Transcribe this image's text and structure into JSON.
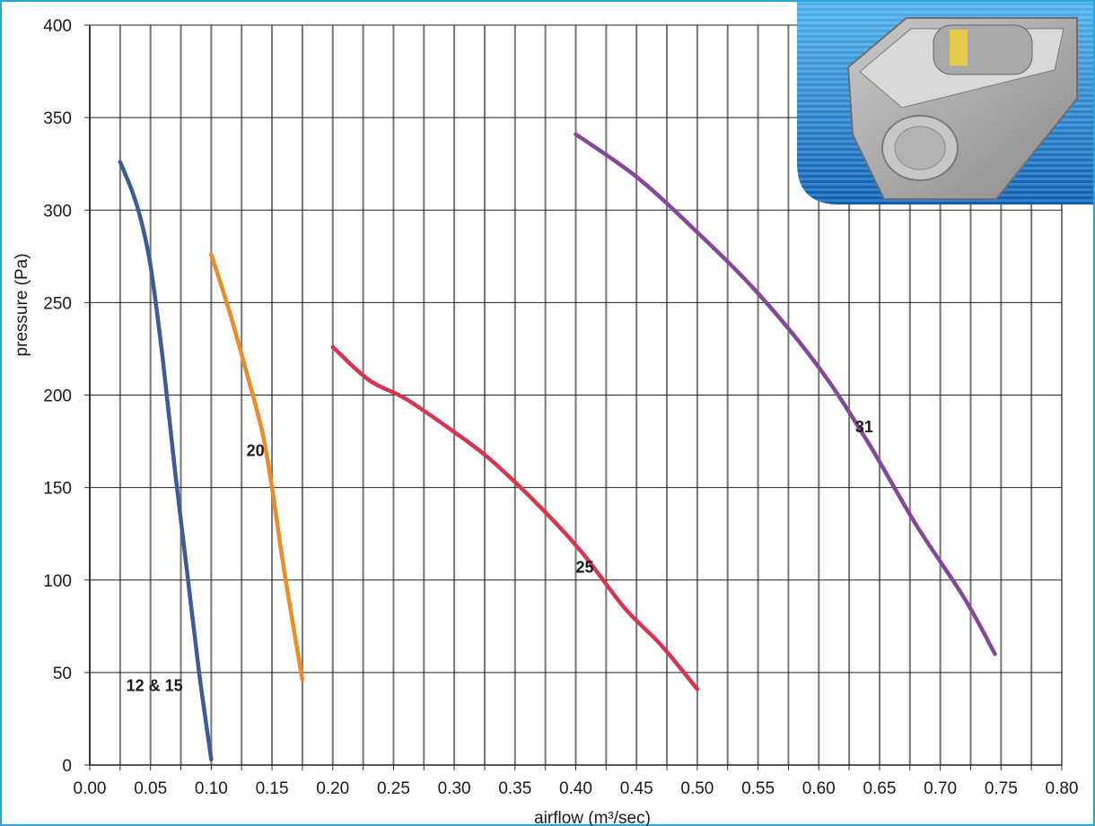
{
  "chart_data": {
    "type": "line",
    "xlabel": "airflow (m³/sec)",
    "ylabel": "pressure (Pa)",
    "xlim": [
      0.0,
      0.8
    ],
    "ylim": [
      0,
      400
    ],
    "x_ticks": [
      "0.00",
      "0.05",
      "0.10",
      "0.15",
      "0.20",
      "0.25",
      "0.30",
      "0.35",
      "0.40",
      "0.45",
      "0.50",
      "0.55",
      "0.60",
      "0.65",
      "0.70",
      "0.75",
      "0.80"
    ],
    "y_ticks": [
      "0",
      "50",
      "100",
      "150",
      "200",
      "250",
      "300",
      "350",
      "400"
    ],
    "grid": true,
    "series": [
      {
        "name": "12 & 15",
        "color": "#3d5a99",
        "points": [
          [
            0.025,
            326
          ],
          [
            0.035,
            310
          ],
          [
            0.042,
            295
          ],
          [
            0.05,
            270
          ],
          [
            0.06,
            220
          ],
          [
            0.07,
            160
          ],
          [
            0.08,
            105
          ],
          [
            0.09,
            50
          ],
          [
            0.1,
            3
          ]
        ]
      },
      {
        "name": "20",
        "color": "#f08a24",
        "points": [
          [
            0.1,
            276
          ],
          [
            0.115,
            245
          ],
          [
            0.13,
            210
          ],
          [
            0.142,
            180
          ],
          [
            0.15,
            150
          ],
          [
            0.16,
            105
          ],
          [
            0.175,
            46
          ]
        ]
      },
      {
        "name": "25",
        "color": "#d9344f",
        "points": [
          [
            0.2,
            226
          ],
          [
            0.23,
            208
          ],
          [
            0.26,
            198
          ],
          [
            0.3,
            180
          ],
          [
            0.33,
            165
          ],
          [
            0.37,
            140
          ],
          [
            0.405,
            115
          ],
          [
            0.44,
            85
          ],
          [
            0.47,
            65
          ],
          [
            0.5,
            41
          ]
        ]
      },
      {
        "name": "31",
        "color": "#86479a",
        "points": [
          [
            0.4,
            341
          ],
          [
            0.45,
            318
          ],
          [
            0.5,
            288
          ],
          [
            0.55,
            255
          ],
          [
            0.6,
            215
          ],
          [
            0.64,
            175
          ],
          [
            0.68,
            130
          ],
          [
            0.72,
            90
          ],
          [
            0.745,
            60
          ]
        ]
      }
    ],
    "annotations": [
      {
        "text": "12 & 15",
        "x": 0.03,
        "y": 40
      },
      {
        "text": "20",
        "x": 0.129,
        "y": 167
      },
      {
        "text": "25",
        "x": 0.4,
        "y": 104
      },
      {
        "text": "31",
        "x": 0.63,
        "y": 180
      }
    ]
  },
  "colors": {
    "frame": "#2aa5d9",
    "grid": "#777777",
    "photo_panel": "#1e74c4"
  },
  "photo": {
    "label": "product-photo"
  }
}
